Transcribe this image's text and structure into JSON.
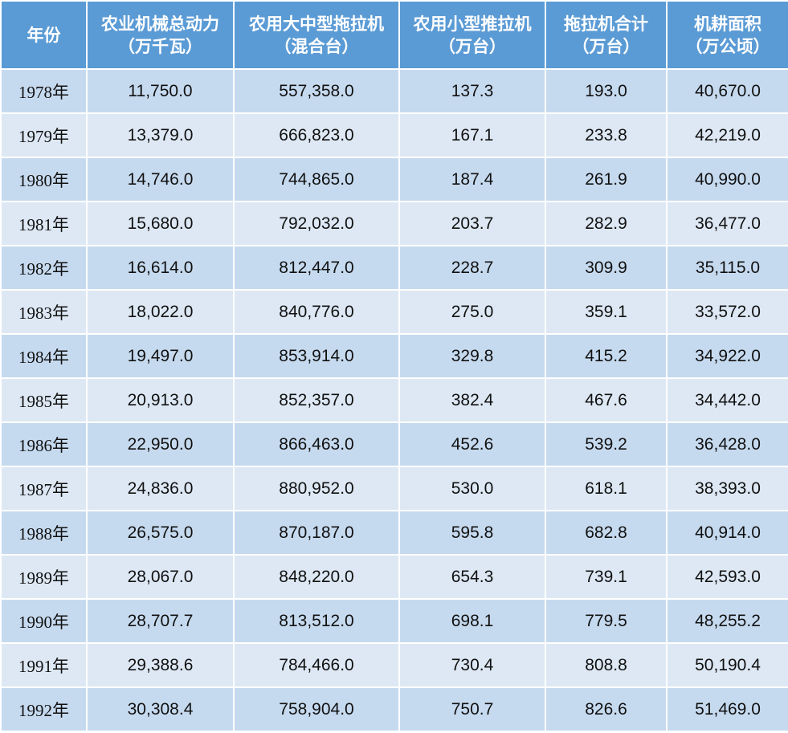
{
  "table": {
    "header": [
      {
        "title": "年份"
      },
      {
        "title": "农业机械总动力",
        "unit": "（万千瓦）"
      },
      {
        "title": "农用大中型拖拉机",
        "unit": "（混合台）"
      },
      {
        "title": "农用小型推拉机",
        "unit": "（万台）"
      },
      {
        "title": "拖拉机合计",
        "unit": "（万台）"
      },
      {
        "title": "机耕面积",
        "unit": "（万公顷）"
      }
    ],
    "rows": [
      [
        "1978年",
        "11,750.0",
        "557,358.0",
        "137.3",
        "193.0",
        "40,670.0"
      ],
      [
        "1979年",
        "13,379.0",
        "666,823.0",
        "167.1",
        "233.8",
        "42,219.0"
      ],
      [
        "1980年",
        "14,746.0",
        "744,865.0",
        "187.4",
        "261.9",
        "40,990.0"
      ],
      [
        "1981年",
        "15,680.0",
        "792,032.0",
        "203.7",
        "282.9",
        "36,477.0"
      ],
      [
        "1982年",
        "16,614.0",
        "812,447.0",
        "228.7",
        "309.9",
        "35,115.0"
      ],
      [
        "1983年",
        "18,022.0",
        "840,776.0",
        "275.0",
        "359.1",
        "33,572.0"
      ],
      [
        "1984年",
        "19,497.0",
        "853,914.0",
        "329.8",
        "415.2",
        "34,922.0"
      ],
      [
        "1985年",
        "20,913.0",
        "852,357.0",
        "382.4",
        "467.6",
        "34,442.0"
      ],
      [
        "1986年",
        "22,950.0",
        "866,463.0",
        "452.6",
        "539.2",
        "36,428.0"
      ],
      [
        "1987年",
        "24,836.0",
        "880,952.0",
        "530.0",
        "618.1",
        "38,393.0"
      ],
      [
        "1988年",
        "26,575.0",
        "870,187.0",
        "595.8",
        "682.8",
        "40,914.0"
      ],
      [
        "1989年",
        "28,067.0",
        "848,220.0",
        "654.3",
        "739.1",
        "42,593.0"
      ],
      [
        "1990年",
        "28,707.7",
        "813,512.0",
        "698.1",
        "779.5",
        "48,255.2"
      ],
      [
        "1991年",
        "29,388.6",
        "784,466.0",
        "730.4",
        "808.8",
        "50,190.4"
      ],
      [
        "1992年",
        "30,308.4",
        "758,904.0",
        "750.7",
        "826.6",
        "51,469.0"
      ]
    ]
  }
}
